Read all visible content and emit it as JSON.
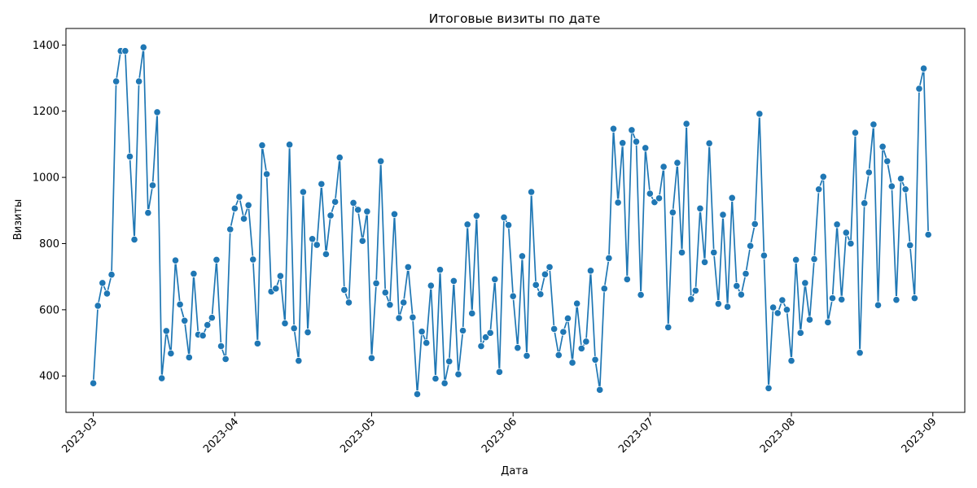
{
  "chart_data": {
    "type": "line",
    "title": "Итоговые визиты по дате",
    "xlabel": "Дата",
    "ylabel": "Визиты",
    "x_start": "2023-03-01",
    "x_step": "1 day",
    "xlim": [
      "2023-02-23",
      "2023-09-08"
    ],
    "ylim": [
      290,
      1450
    ],
    "x_ticks": [
      "2023-03",
      "2023-04",
      "2023-05",
      "2023-06",
      "2023-07",
      "2023-08",
      "2023-09"
    ],
    "x_tick_dates": [
      "2023-03-01",
      "2023-04-01",
      "2023-05-01",
      "2023-06-01",
      "2023-07-01",
      "2023-08-01",
      "2023-09-01"
    ],
    "y_ticks": [
      400,
      600,
      800,
      1000,
      1200,
      1400
    ],
    "grid": false,
    "legend": "none",
    "series": [
      {
        "color": "#1f77b4",
        "marker": "circle",
        "values": [
          378,
          612,
          681,
          649,
          706,
          1290,
          1382,
          1382,
          1063,
          812,
          1290,
          1393,
          893,
          976,
          1197,
          393,
          536,
          468,
          749,
          616,
          567,
          456,
          709,
          525,
          522,
          554,
          576,
          751,
          490,
          451,
          843,
          906,
          941,
          875,
          916,
          752,
          498,
          1097,
          1010,
          655,
          664,
          702,
          559,
          1099,
          544,
          446,
          956,
          532,
          814,
          796,
          980,
          768,
          885,
          926,
          1060,
          660,
          622,
          923,
          902,
          808,
          897,
          454,
          680,
          1049,
          652,
          615,
          889,
          575,
          622,
          729,
          577,
          345,
          534,
          500,
          673,
          392,
          721,
          378,
          444,
          687,
          405,
          537,
          858,
          589,
          884,
          490,
          517,
          530,
          692,
          412,
          879,
          856,
          641,
          485,
          762,
          461,
          956,
          675,
          647,
          707,
          729,
          542,
          463,
          533,
          574,
          440,
          619,
          483,
          504,
          718,
          449,
          358,
          664,
          756,
          1147,
          924,
          1104,
          692,
          1143,
          1108,
          645,
          1089,
          951,
          925,
          937,
          1032,
          547,
          894,
          1044,
          773,
          1162,
          632,
          658,
          906,
          744,
          1103,
          773,
          618,
          887,
          609,
          938,
          672,
          646,
          709,
          793,
          859,
          1192,
          764,
          363,
          607,
          590,
          629,
          600,
          446,
          751,
          530,
          681,
          570,
          753,
          964,
          1002,
          562,
          635,
          858,
          631,
          833,
          800,
          1135,
          470,
          922,
          1015,
          1160,
          614,
          1093,
          1049,
          973,
          630,
          996,
          964,
          795,
          635,
          1268,
          1329,
          827
        ]
      }
    ]
  }
}
